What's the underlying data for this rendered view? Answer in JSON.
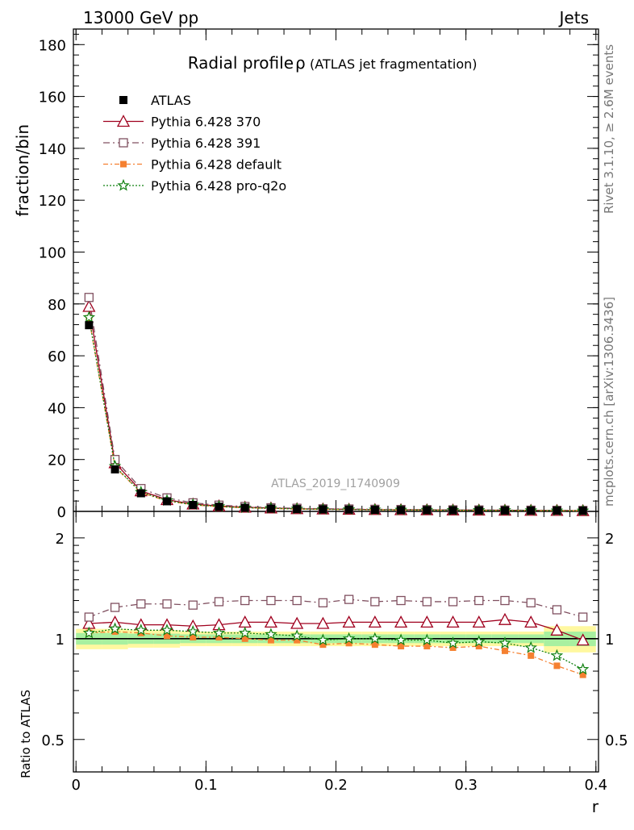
{
  "header": {
    "left": "13000 GeV pp",
    "right": "Jets"
  },
  "side": {
    "rivet": "Rivet 3.1.10, ≥ 2.6M events",
    "mcplots": "mcplots.cern.ch [arXiv:1306.3436]"
  },
  "chart_data": {
    "type": "line",
    "title": "Radial profile",
    "title_symbol": "ρ",
    "title_suffix": "(ATLAS jet fragmentation)",
    "watermark": "ATLAS_2019_I1740909",
    "ylabel": "fraction/bin",
    "xlabel": "r",
    "ratio_ylabel": "Ratio to ATLAS",
    "xlim": [
      -0.002,
      0.402
    ],
    "ylim": [
      0,
      186
    ],
    "ratio_ylim": [
      0.4,
      2.4
    ],
    "ratio_scale": "log",
    "x_ticks": [
      0,
      0.1,
      0.2,
      0.3,
      0.4
    ],
    "x_tick_labels": [
      "0",
      "0.1",
      "0.2",
      "0.3",
      "0.4"
    ],
    "y_ticks": [
      0,
      20,
      40,
      60,
      80,
      100,
      120,
      140,
      160,
      180
    ],
    "y_tick_labels": [
      "0",
      "20",
      "40",
      "60",
      "80",
      "100",
      "120",
      "140",
      "160",
      "180"
    ],
    "ratio_ticks": [
      0.5,
      1,
      2
    ],
    "ratio_tick_labels": [
      "0.5",
      "1",
      "2"
    ],
    "x": [
      0.01,
      0.03,
      0.05,
      0.07,
      0.09,
      0.11,
      0.13,
      0.15,
      0.17,
      0.19,
      0.21,
      0.23,
      0.25,
      0.27,
      0.29,
      0.31,
      0.33,
      0.35,
      0.37,
      0.39
    ],
    "legend_position": "top-left",
    "data": {
      "name": "ATLAS",
      "values": [
        71.8,
        16.2,
        7.0,
        3.9,
        2.5,
        1.8,
        1.4,
        1.1,
        0.9,
        0.8,
        0.7,
        0.6,
        0.55,
        0.5,
        0.45,
        0.42,
        0.38,
        0.35,
        0.33,
        0.3
      ],
      "band_inner": [
        0.04,
        0.04,
        0.035,
        0.035,
        0.03,
        0.03,
        0.03,
        0.03,
        0.03,
        0.03,
        0.03,
        0.03,
        0.03,
        0.03,
        0.03,
        0.03,
        0.03,
        0.03,
        0.05,
        0.05
      ],
      "band_outer": [
        0.07,
        0.07,
        0.06,
        0.06,
        0.05,
        0.05,
        0.05,
        0.05,
        0.05,
        0.05,
        0.05,
        0.05,
        0.05,
        0.05,
        0.05,
        0.05,
        0.05,
        0.05,
        0.09,
        0.09
      ]
    },
    "series": [
      {
        "name": "Pythia 6.428 370",
        "color": "#a0001e",
        "marker": "triangle",
        "dash": "",
        "values": [
          79.0,
          18.7,
          7.9,
          4.5,
          2.8,
          2.1,
          1.6,
          1.3,
          1.0,
          0.9,
          0.8,
          0.69,
          0.63,
          0.58,
          0.52,
          0.48,
          0.44,
          0.39,
          0.35,
          0.29
        ],
        "ratio": [
          1.11,
          1.12,
          1.1,
          1.1,
          1.09,
          1.1,
          1.12,
          1.12,
          1.11,
          1.11,
          1.12,
          1.12,
          1.12,
          1.12,
          1.12,
          1.12,
          1.14,
          1.12,
          1.06,
          0.99
        ]
      },
      {
        "name": "Pythia 6.428 391",
        "color": "#805060",
        "marker": "square-open",
        "dash": "8,4,2,4",
        "values": [
          82.5,
          20.0,
          8.8,
          5.2,
          3.3,
          2.4,
          1.9,
          1.4,
          1.2,
          1.0,
          0.93,
          0.81,
          0.74,
          0.67,
          0.6,
          0.56,
          0.51,
          0.46,
          0.42,
          0.36
        ],
        "ratio": [
          1.16,
          1.24,
          1.27,
          1.27,
          1.26,
          1.29,
          1.3,
          1.3,
          1.3,
          1.28,
          1.31,
          1.29,
          1.3,
          1.29,
          1.29,
          1.3,
          1.3,
          1.28,
          1.22,
          1.16
        ]
      },
      {
        "name": "Pythia 6.428 default",
        "color": "#f58030",
        "marker": "square-filled",
        "dash": "6,3,2,3",
        "values": [
          74.5,
          17.1,
          7.2,
          4.0,
          2.5,
          1.8,
          1.4,
          1.1,
          0.9,
          0.77,
          0.68,
          0.58,
          0.52,
          0.48,
          0.42,
          0.39,
          0.34,
          0.31,
          0.27,
          0.24
        ],
        "ratio": [
          1.04,
          1.05,
          1.04,
          1.02,
          1.01,
          1.01,
          1.0,
          0.99,
          0.99,
          0.96,
          0.97,
          0.96,
          0.95,
          0.95,
          0.94,
          0.95,
          0.92,
          0.89,
          0.83,
          0.78
        ]
      },
      {
        "name": "Pythia 6.428 pro-q2o",
        "color": "#108010",
        "marker": "star",
        "dash": "2,2",
        "values": [
          74.8,
          17.4,
          7.4,
          4.2,
          2.6,
          1.9,
          1.4,
          1.2,
          0.95,
          0.8,
          0.72,
          0.62,
          0.56,
          0.51,
          0.45,
          0.42,
          0.38,
          0.33,
          0.29,
          0.25
        ],
        "ratio": [
          1.04,
          1.07,
          1.06,
          1.06,
          1.05,
          1.04,
          1.04,
          1.03,
          1.02,
          0.99,
          1.0,
          1.0,
          0.99,
          0.99,
          0.97,
          0.98,
          0.97,
          0.94,
          0.89,
          0.81
        ]
      }
    ]
  }
}
